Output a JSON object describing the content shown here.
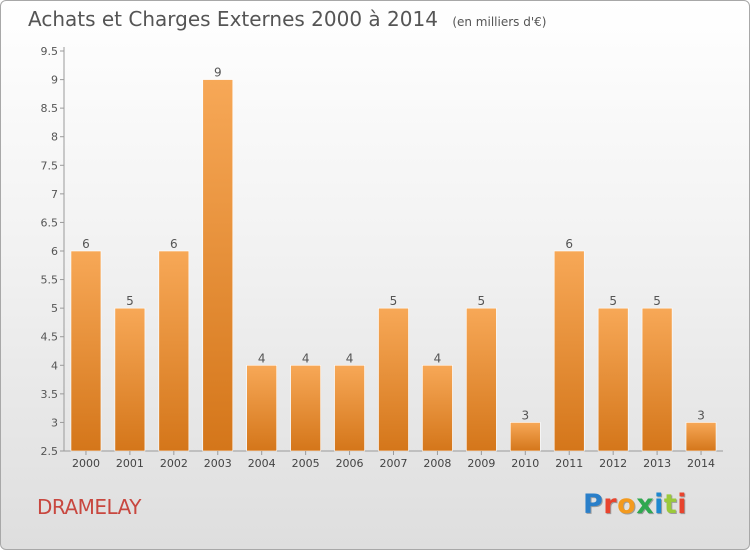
{
  "title": "Achats et Charges Externes 2000 à 2014",
  "subtitle": "(en milliers d'€)",
  "commune": "DRAMELAY",
  "brand": {
    "text": "Proxiti",
    "letters": [
      "P",
      "r",
      "o",
      "x",
      "i",
      "t",
      "i"
    ],
    "letter_colors": [
      "#2a7fc9",
      "#e8442e",
      "#f39a1e",
      "#2fa84f",
      "#1e88d0",
      "#9bc93b",
      "#e8442e"
    ]
  },
  "colors": {
    "bar_top": "#f7a857",
    "bar_bottom": "#d4761a",
    "title": "#555555",
    "commune": "#c8473f"
  },
  "chart_data": {
    "type": "bar",
    "title": "Achats et Charges Externes 2000 à 2014",
    "subtitle": "(en milliers d'€)",
    "categories": [
      "2000",
      "2001",
      "2002",
      "2003",
      "2004",
      "2005",
      "2006",
      "2007",
      "2008",
      "2009",
      "2010",
      "2011",
      "2012",
      "2013",
      "2014"
    ],
    "values": [
      6,
      5,
      6,
      9,
      4,
      4,
      4,
      5,
      4,
      5,
      3,
      6,
      5,
      5,
      3
    ],
    "data_labels": [
      "6",
      "5",
      "6",
      "9",
      "4",
      "4",
      "4",
      "5",
      "4",
      "5",
      "3",
      "6",
      "5",
      "5",
      "3"
    ],
    "ylim": [
      2.5,
      9.5
    ],
    "yticks": [
      "2.5",
      "3",
      "3.5",
      "4",
      "4.5",
      "5",
      "5.5",
      "6",
      "6.5",
      "7",
      "7.5",
      "8",
      "8.5",
      "9",
      "9.5"
    ],
    "xlabel": "",
    "ylabel": "",
    "grid": false,
    "legend": "none"
  }
}
